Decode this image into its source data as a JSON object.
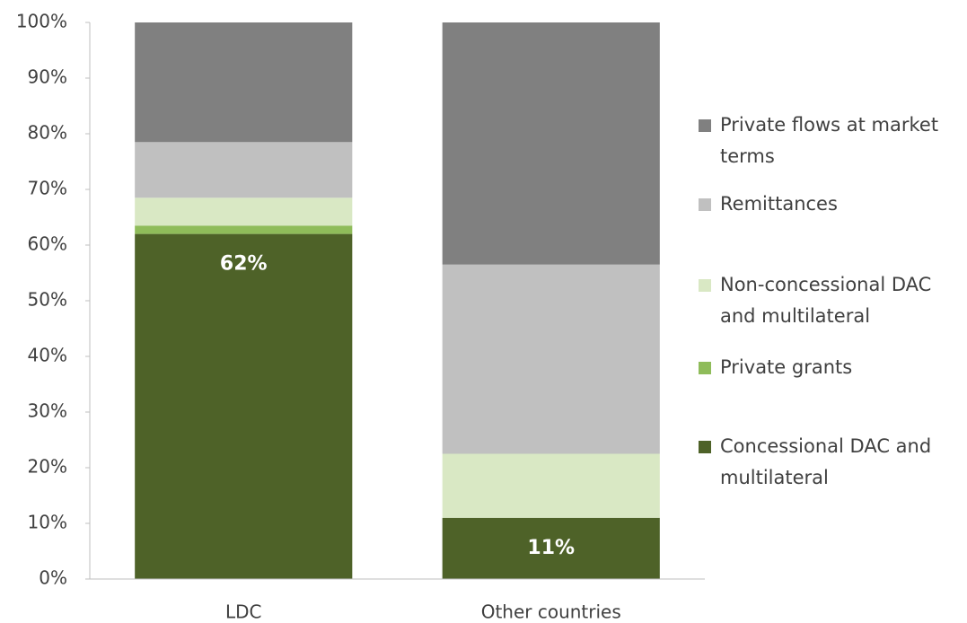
{
  "chart_data": {
    "type": "stacked_bar",
    "categories": [
      "LDC",
      "Other countries"
    ],
    "series": [
      {
        "name": "Concessional DAC and multilateral",
        "color": "#4e6228",
        "values": [
          62,
          11
        ],
        "value_labels": [
          "62%",
          "11%"
        ]
      },
      {
        "name": "Private grants",
        "color": "#8fbc5a",
        "values": [
          1.5,
          0
        ]
      },
      {
        "name": "Non-concessional DAC and multilateral",
        "color": "#d9e8c4",
        "values": [
          5,
          11.5
        ]
      },
      {
        "name": "Remittances",
        "color": "#c0c0c0",
        "values": [
          10,
          34
        ]
      },
      {
        "name": "Private flows at market terms",
        "color": "#808080",
        "values": [
          21.5,
          43.5
        ]
      }
    ],
    "ylim": [
      0,
      100
    ],
    "yticks": [
      {
        "value": 0,
        "label": "0%"
      },
      {
        "value": 10,
        "label": "10%"
      },
      {
        "value": 20,
        "label": "20%"
      },
      {
        "value": 30,
        "label": "30%"
      },
      {
        "value": 40,
        "label": "40%"
      },
      {
        "value": 50,
        "label": "50%"
      },
      {
        "value": 60,
        "label": "60%"
      },
      {
        "value": 70,
        "label": "70%"
      },
      {
        "value": 80,
        "label": "80%"
      },
      {
        "value": 90,
        "label": "90%"
      },
      {
        "value": 100,
        "label": "100%"
      }
    ],
    "legend": "right"
  }
}
